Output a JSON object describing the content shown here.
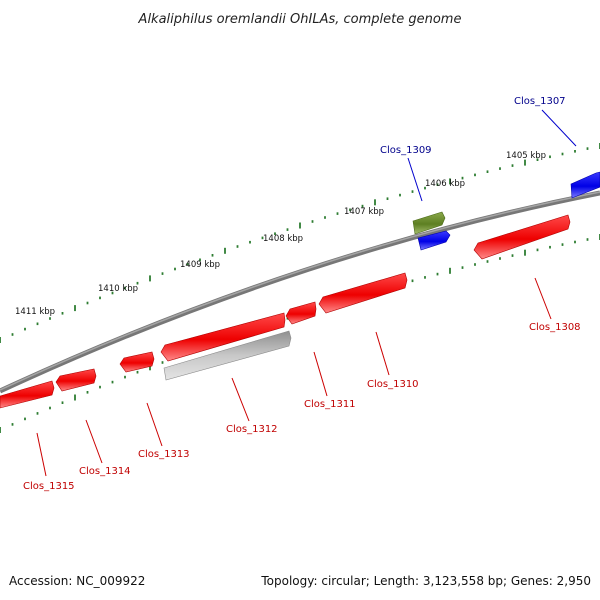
{
  "title": "Alkaliphilus oremlandii OhILAs, complete genome",
  "footer": {
    "accession": "Accession: NC_009922",
    "summary": "Topology: circular; Length: 3,123,558 bp; Genes: 2,950"
  },
  "colors": {
    "backbone": "#7f7f7f",
    "forward_gene": "#0000ff",
    "reverse_gene": "#ff0000",
    "rna_gene": "#6b8e23",
    "other_feature": "#b5b5b5",
    "tick": "#2e7d32",
    "forward_label": "#00008b",
    "reverse_label": "#c00000"
  },
  "tick_labels": [
    "1405 kbp",
    "1406 kbp",
    "1407 kbp",
    "1408 kbp",
    "1409 kbp",
    "1410 kbp",
    "1411 kbp"
  ],
  "gene_labels": [
    {
      "text": "Clos_1307",
      "strand": "forward"
    },
    {
      "text": "Clos_1309",
      "strand": "forward"
    },
    {
      "text": "Clos_1308",
      "strand": "reverse"
    },
    {
      "text": "Clos_1310",
      "strand": "reverse"
    },
    {
      "text": "Clos_1311",
      "strand": "reverse"
    },
    {
      "text": "Clos_1312",
      "strand": "reverse"
    },
    {
      "text": "Clos_1313",
      "strand": "reverse"
    },
    {
      "text": "Clos_1314",
      "strand": "reverse"
    },
    {
      "text": "Clos_1315",
      "strand": "reverse"
    }
  ]
}
